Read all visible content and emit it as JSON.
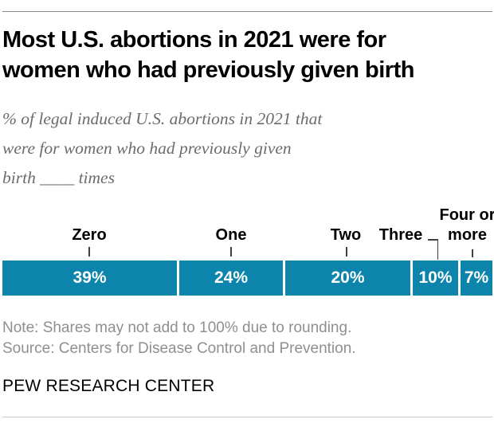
{
  "page": {
    "title_lines": [
      "Most U.S. abortions in 2021 were for",
      "women who had previously given birth"
    ],
    "subtitle_lines": [
      "% of legal induced U.S. abortions in 2021 that",
      "were for women who had previously given",
      "birth ____ times"
    ],
    "note": "Note: Shares may not add to 100% due to rounding.",
    "source": "Source: Centers for Disease Control and Prevention.",
    "footer": "PEW RESEARCH CENTER"
  },
  "chart_data": {
    "type": "bar",
    "variant": "horizontal-stacked-single-bar",
    "title": "Most U.S. abortions in 2021 were for women who had previously given birth",
    "subtitle": "% of legal induced U.S. abortions in 2021 that were for women who had previously given birth ____ times",
    "categories": [
      "Zero",
      "One",
      "Two",
      "Three",
      "Four or more"
    ],
    "values": [
      39,
      24,
      20,
      10,
      7
    ],
    "value_labels": [
      "39%",
      "24%",
      "20%",
      "10%",
      "7%"
    ],
    "unit": "%",
    "total": 100,
    "bar_color": "#0d84ac",
    "value_text_color": "#ffffff",
    "axes": "none",
    "grid": false,
    "legend_position": "none",
    "note": "Note: Shares may not add to 100% due to rounding.",
    "source": "Source: Centers for Disease Control and Prevention.",
    "branding": "PEW RESEARCH CENTER"
  }
}
